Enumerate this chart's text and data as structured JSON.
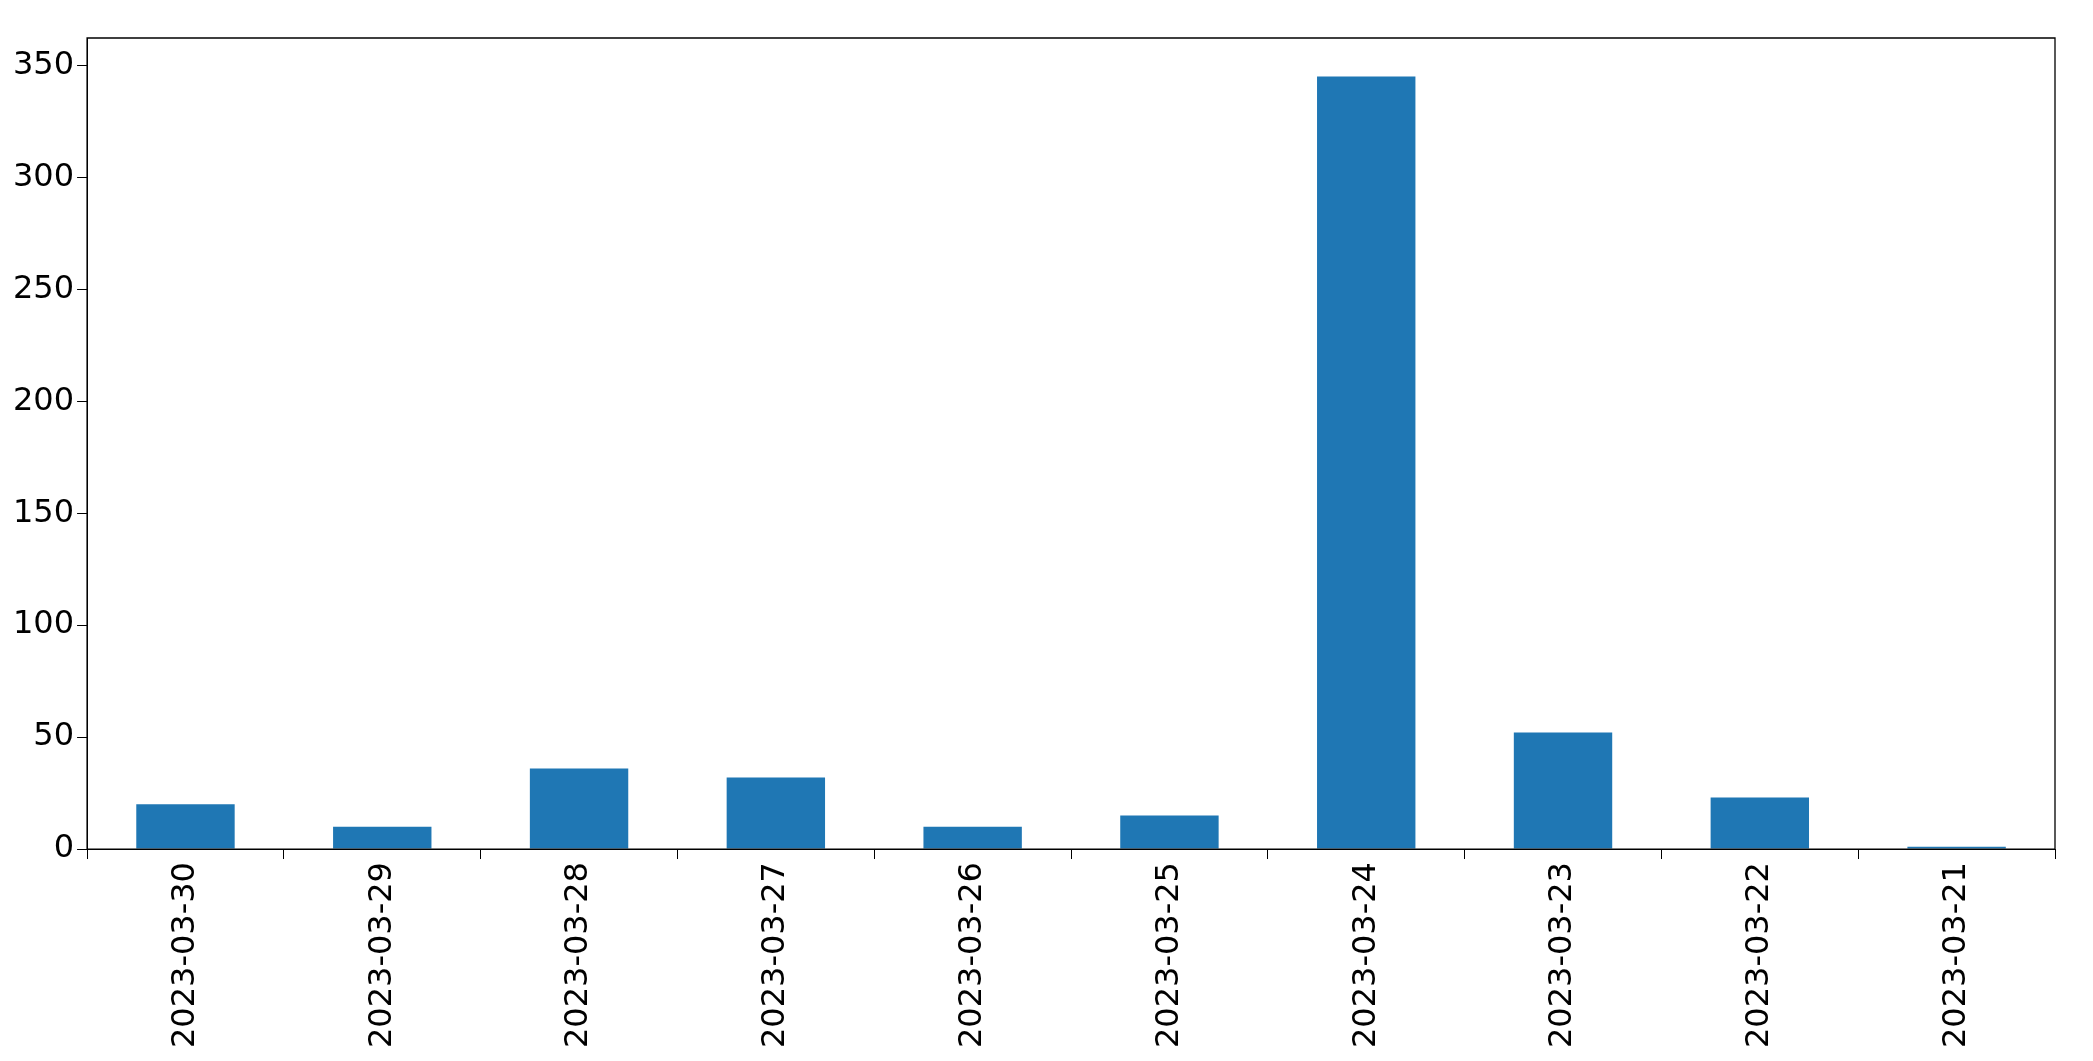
{
  "chart_data": {
    "type": "bar",
    "categories": [
      "2023-03-30",
      "2023-03-29",
      "2023-03-28",
      "2023-03-27",
      "2023-03-26",
      "2023-03-25",
      "2023-03-24",
      "2023-03-23",
      "2023-03-22",
      "2023-03-21"
    ],
    "values": [
      20,
      10,
      36,
      32,
      10,
      15,
      345,
      52,
      23,
      1
    ],
    "color": "#1f77b4",
    "ylim": [
      0,
      362.25
    ],
    "yticks": [
      0,
      50,
      100,
      150,
      200,
      250,
      300,
      350
    ],
    "grid": false,
    "legend": false
  }
}
